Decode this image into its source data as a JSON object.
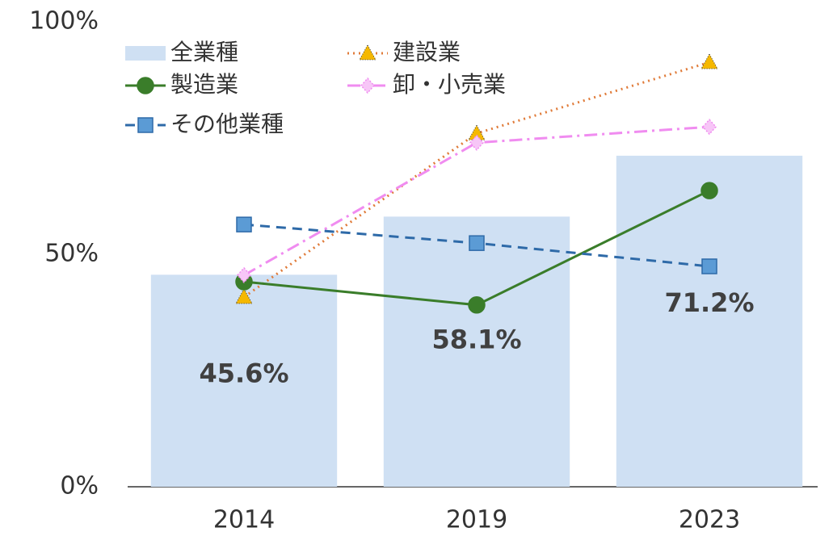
{
  "chart_data": {
    "type": "bar-line",
    "categories": [
      "2014",
      "2019",
      "2023"
    ],
    "ylim": [
      0,
      100
    ],
    "yticks": [
      {
        "value": 0,
        "label": "0%"
      },
      {
        "value": 50,
        "label": "50%"
      },
      {
        "value": 100,
        "label": "100%"
      }
    ],
    "series": [
      {
        "name": "全業種",
        "type": "bar",
        "color": "#cfe0f3",
        "values": [
          45.6,
          58.1,
          71.2
        ],
        "value_labels": [
          "45.6%",
          "58.1%",
          "71.2%"
        ]
      },
      {
        "name": "建設業",
        "type": "line",
        "color": "#e07b39",
        "marker": "triangle",
        "marker_color": "#f5b800",
        "dash": "dotted",
        "values": [
          40.8,
          76.0,
          91.3
        ]
      },
      {
        "name": "製造業",
        "type": "line",
        "color": "#3a7d2a",
        "marker": "circle",
        "marker_color": "#3a7d2a",
        "dash": "solid",
        "values": [
          44.1,
          39.1,
          63.7
        ]
      },
      {
        "name": "卸・小売業",
        "type": "line",
        "color": "#f08cf0",
        "marker": "diamond",
        "marker_color": "#f7c6f7",
        "dash": "dashdot",
        "values": [
          45.5,
          74.0,
          77.4
        ]
      },
      {
        "name": "その他業種",
        "type": "line",
        "color": "#2e6aa8",
        "marker": "square",
        "marker_color": "#5b9bd5",
        "dash": "dashed",
        "values": [
          56.4,
          52.4,
          47.4
        ]
      }
    ]
  }
}
